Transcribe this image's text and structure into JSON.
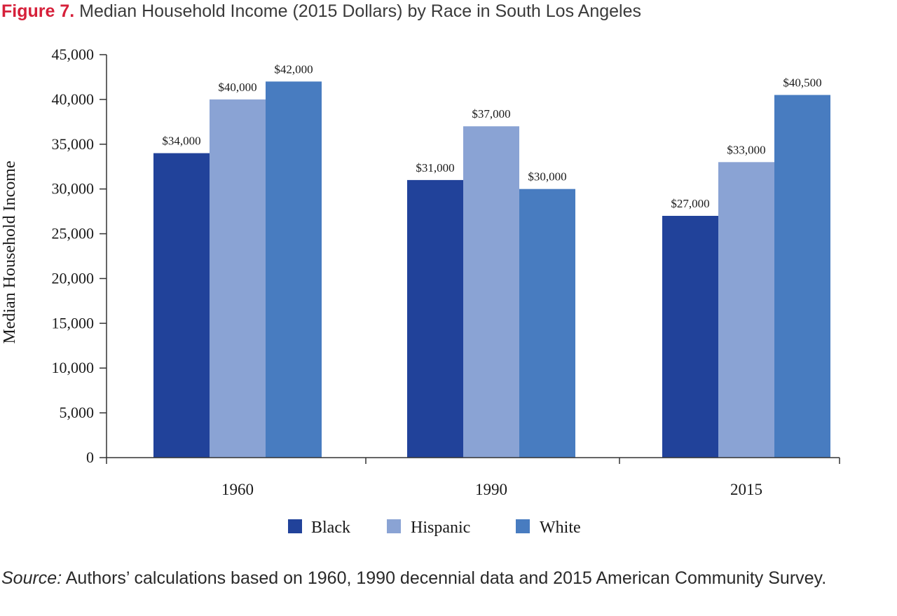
{
  "figure": {
    "label": "Figure 7.",
    "title": "Median Household Income (2015 Dollars) by Race in South Los Angeles"
  },
  "source": {
    "label": "Source:",
    "text": "Authors’ calculations based on 1960, 1990 decennial data and 2015 American Community Survey."
  },
  "chart_data": {
    "type": "bar",
    "categories": [
      "1960",
      "1990",
      "2015"
    ],
    "series": [
      {
        "name": "Black",
        "color": "#21429a",
        "values": [
          34000,
          31000,
          27000
        ],
        "labels": [
          "$34,000",
          "$31,000",
          "$27,000"
        ]
      },
      {
        "name": "Hispanic",
        "color": "#8aa3d4",
        "values": [
          40000,
          37000,
          33000
        ],
        "labels": [
          "$40,000",
          "$37,000",
          "$33,000"
        ]
      },
      {
        "name": "White",
        "color": "#487cc0",
        "values": [
          42000,
          30000,
          40500
        ],
        "labels": [
          "$42,000",
          "$30,000",
          "$40,500"
        ]
      }
    ],
    "ylabel": "Median Household Income",
    "xlabel": "",
    "ylim": [
      0,
      45000
    ],
    "yticks": [
      0,
      5000,
      10000,
      15000,
      20000,
      25000,
      30000,
      35000,
      40000,
      45000
    ],
    "ytick_labels": [
      "0",
      "5,000",
      "10,000",
      "15,000",
      "20,000",
      "25,000",
      "30,000",
      "35,000",
      "40,000",
      "45,000"
    ],
    "grid": false,
    "legend_position": "bottom-center"
  }
}
